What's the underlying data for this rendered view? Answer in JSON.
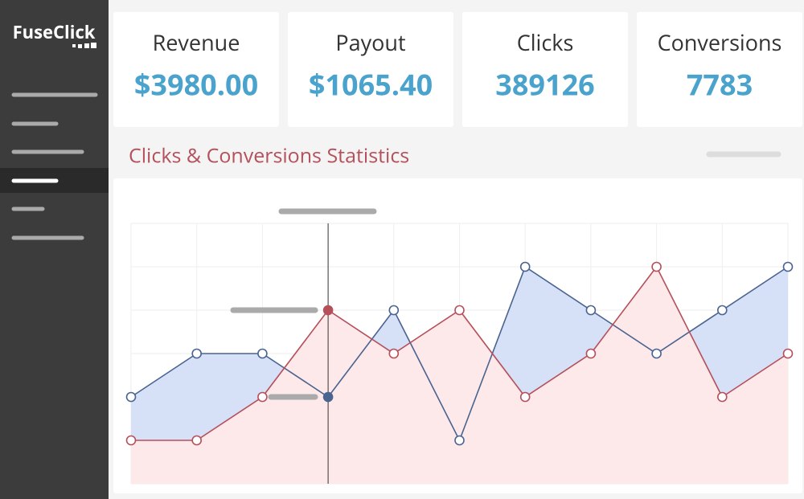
{
  "sidebar": {
    "logo": "FuseClick"
  },
  "kpis": [
    {
      "label": "Revenue",
      "value": "$3980.00"
    },
    {
      "label": "Payout",
      "value": "$1065.40"
    },
    {
      "label": "Clicks",
      "value": "389126"
    },
    {
      "label": "Conversions",
      "value": "7783"
    }
  ],
  "chart_data": {
    "type": "area",
    "title": "Clicks & Conversions Statistics",
    "x": [
      0,
      1,
      2,
      3,
      4,
      5,
      6,
      7,
      8,
      9,
      10
    ],
    "series": [
      {
        "color": "#4a6490",
        "fill": "#d6e0f7",
        "values": [
          2,
          3,
          3,
          2,
          4,
          1,
          5,
          4,
          3,
          4,
          5
        ]
      },
      {
        "color": "#b5505b",
        "fill": "#fde8ea",
        "values": [
          1,
          1,
          2,
          4,
          3,
          4,
          2,
          3,
          5,
          2,
          3
        ]
      }
    ],
    "xlim": [
      0,
      10
    ],
    "ylim": [
      0,
      6
    ],
    "yticks": [
      0,
      1,
      2,
      3,
      4,
      5,
      6
    ],
    "xticks": [
      0,
      1,
      2,
      3,
      4,
      5,
      6,
      7,
      8,
      9,
      10
    ],
    "grid": true,
    "highlight": 3
  }
}
